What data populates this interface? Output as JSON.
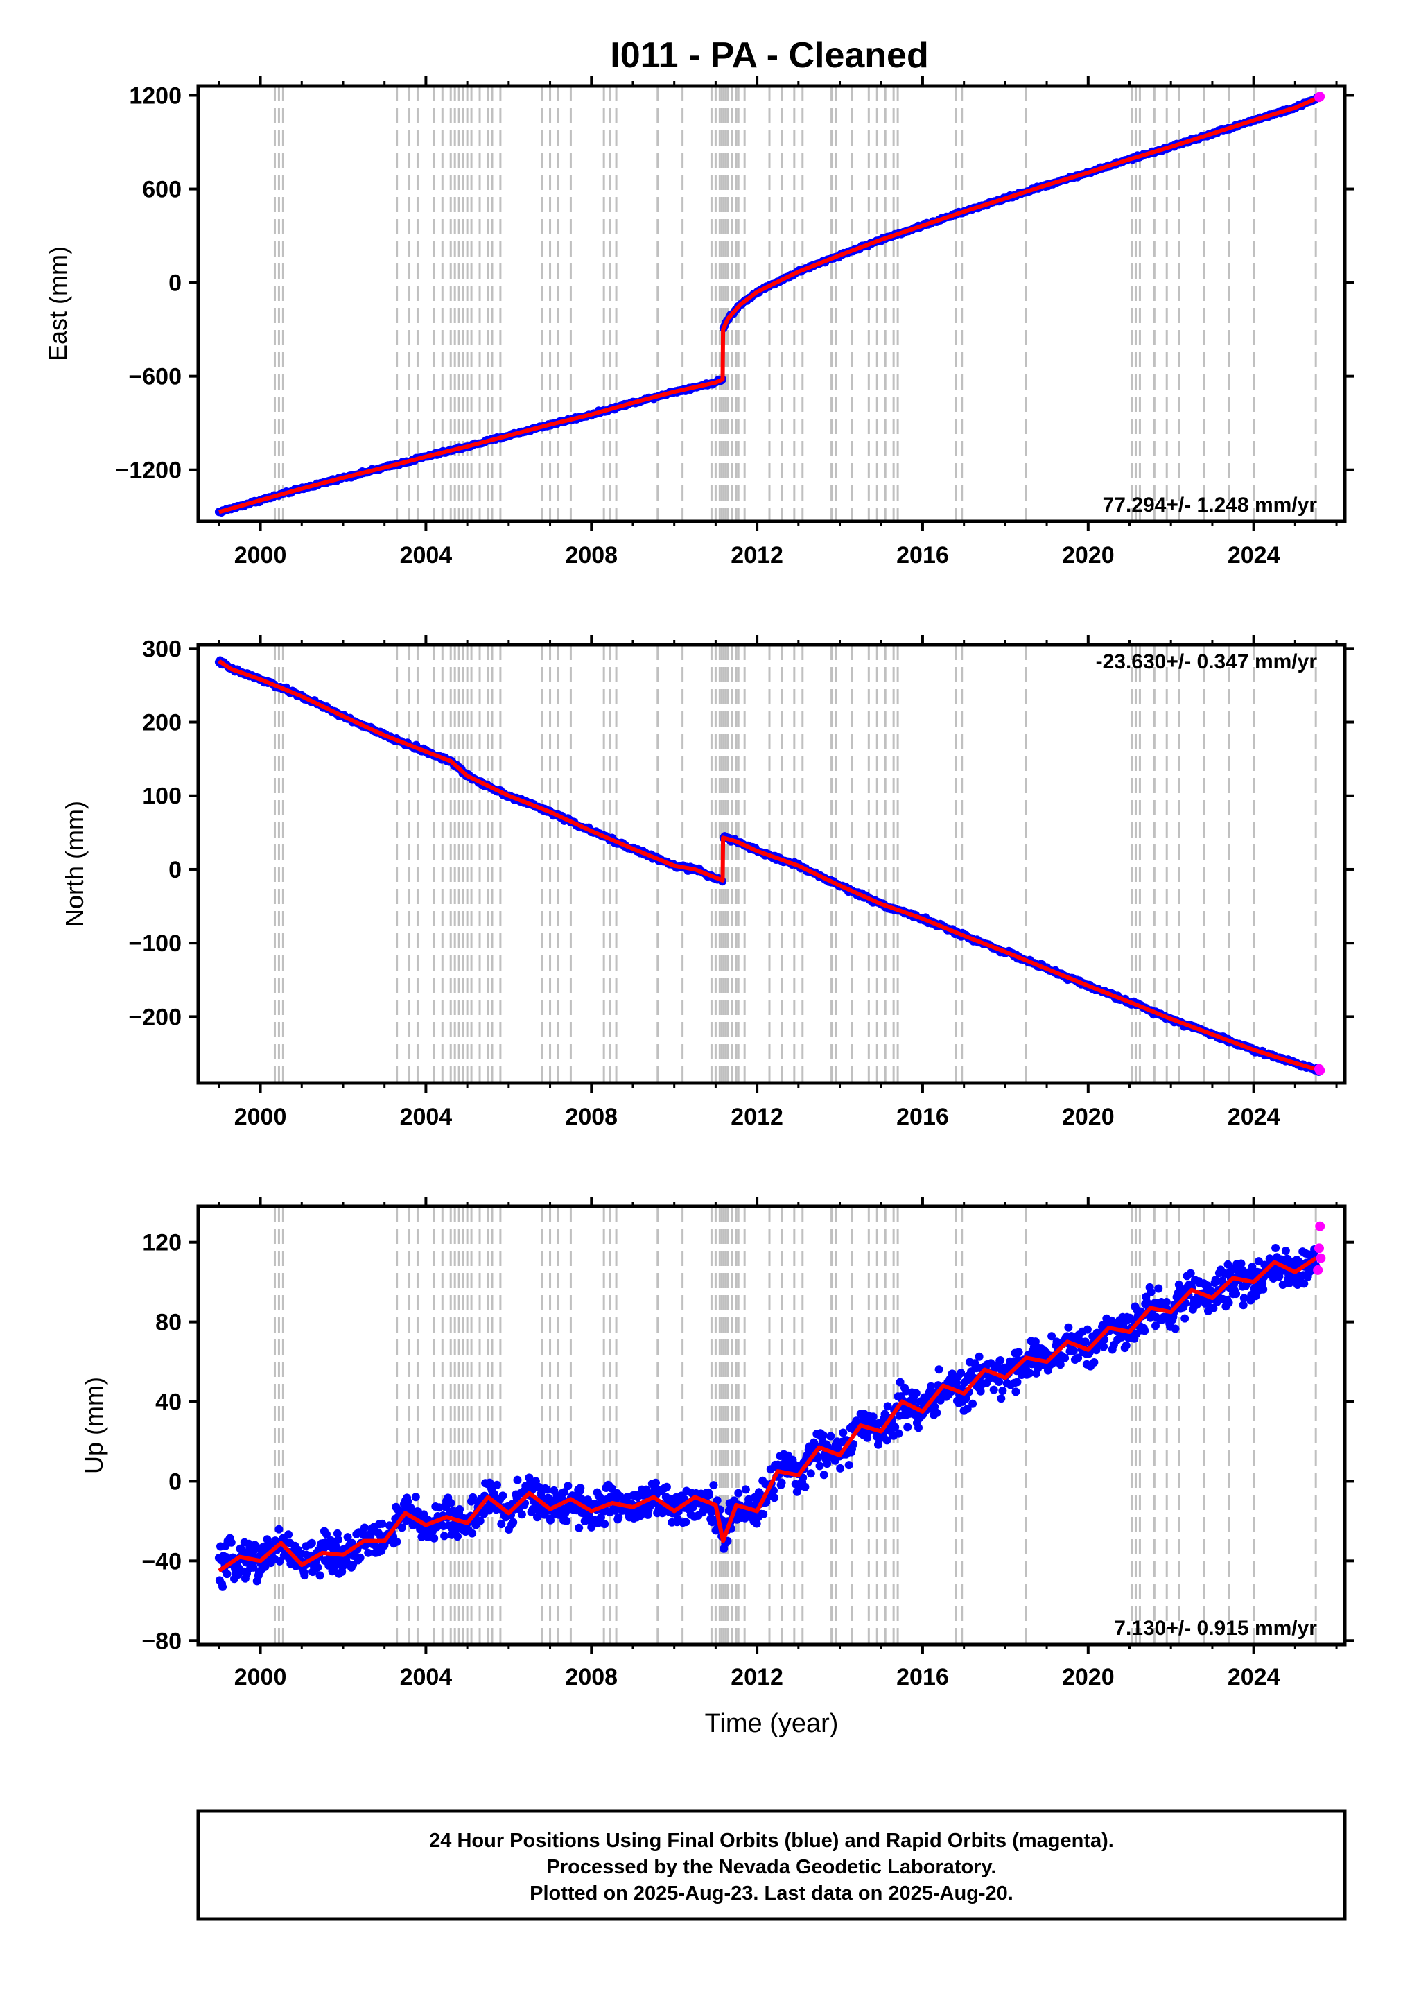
{
  "title": "I011  - PA - Cleaned",
  "footer": {
    "lines": [
      "24 Hour Positions Using Final Orbits (blue) and Rapid Orbits (magenta).",
      "Processed by the Nevada Geodetic Laboratory.",
      "Plotted on 2025-Aug-23. Last data on 2025-Aug-20."
    ]
  },
  "colors": {
    "final_orbits": "#0000ff",
    "rapid_orbits": "#ff00ff",
    "model": "#ff0000",
    "event_lines": "#c0c0c0"
  },
  "event_lines_years": [
    2000.35,
    2000.45,
    2000.55,
    2003.3,
    2003.6,
    2003.8,
    2004.2,
    2004.4,
    2004.6,
    2004.7,
    2004.8,
    2004.9,
    2005.0,
    2005.1,
    2005.3,
    2005.5,
    2005.6,
    2005.8,
    2006.8,
    2007.0,
    2007.2,
    2007.5,
    2008.3,
    2008.45,
    2008.6,
    2009.6,
    2010.2,
    2010.9,
    2011.0,
    2011.1,
    2011.15,
    2011.2,
    2011.25,
    2011.3,
    2011.4,
    2011.5,
    2011.55,
    2011.7,
    2012.3,
    2012.6,
    2012.9,
    2013.1,
    2013.8,
    2013.9,
    2014.3,
    2014.7,
    2014.9,
    2015.1,
    2015.3,
    2015.4,
    2016.8,
    2016.95,
    2018.5,
    2021.05,
    2021.15,
    2021.25,
    2021.6,
    2021.9,
    2022.2,
    2022.8,
    2023.4,
    2024.0,
    2025.5
  ],
  "chart_data": [
    {
      "type": "scatter",
      "ylabel": "East (mm)",
      "xlabel": "",
      "xlim": [
        1998.5,
        2026.2
      ],
      "ylim": [
        -1530,
        1260
      ],
      "xticks": [
        2000,
        2004,
        2008,
        2012,
        2016,
        2020,
        2024
      ],
      "yticks": [
        -1200,
        -600,
        0,
        600,
        1200
      ],
      "rate_label": "77.294+/- 1.248 mm/yr",
      "rate_position": "bottom-right",
      "series": [
        {
          "role": "final-orbits",
          "x": [
            1999.0,
            2000.0,
            2001.0,
            2002.0,
            2003.0,
            2004.0,
            2005.0,
            2006.0,
            2007.0,
            2008.0,
            2009.0,
            2010.0,
            2011.0,
            2011.17,
            2011.18,
            2011.3,
            2011.6,
            2012.0,
            2013.0,
            2014.0,
            2015.0,
            2016.0,
            2017.0,
            2018.0,
            2019.0,
            2020.0,
            2021.0,
            2022.0,
            2023.0,
            2024.0,
            2025.0,
            2025.6
          ],
          "y": [
            -1470,
            -1395,
            -1320,
            -1250,
            -1185,
            -1115,
            -1050,
            -980,
            -910,
            -845,
            -770,
            -700,
            -640,
            -620,
            -300,
            -230,
            -140,
            -60,
            70,
            175,
            275,
            365,
            455,
            540,
            625,
            705,
            790,
            870,
            955,
            1040,
            1120,
            1190
          ]
        },
        {
          "role": "rapid-orbits",
          "x": [
            2025.58,
            2025.6
          ],
          "y": [
            1188,
            1192
          ]
        },
        {
          "role": "model",
          "x": [
            1999.0,
            2000.0,
            2001.0,
            2002.0,
            2003.0,
            2004.0,
            2005.0,
            2006.0,
            2007.0,
            2008.0,
            2009.0,
            2010.0,
            2011.0,
            2011.17,
            2011.18,
            2011.3,
            2011.6,
            2012.0,
            2013.0,
            2014.0,
            2015.0,
            2016.0,
            2017.0,
            2018.0,
            2019.0,
            2020.0,
            2021.0,
            2022.0,
            2023.0,
            2024.0,
            2025.0,
            2025.6
          ],
          "y": [
            -1470,
            -1395,
            -1320,
            -1250,
            -1185,
            -1115,
            -1050,
            -980,
            -910,
            -845,
            -770,
            -700,
            -640,
            -620,
            -300,
            -230,
            -140,
            -60,
            70,
            175,
            275,
            365,
            455,
            540,
            625,
            705,
            790,
            870,
            955,
            1040,
            1120,
            1190
          ]
        }
      ]
    },
    {
      "type": "scatter",
      "ylabel": "North (mm)",
      "xlabel": "",
      "xlim": [
        1998.5,
        2026.2
      ],
      "ylim": [
        -290,
        305
      ],
      "xticks": [
        2000,
        2004,
        2008,
        2012,
        2016,
        2020,
        2024
      ],
      "yticks": [
        -200,
        -100,
        0,
        100,
        200,
        300
      ],
      "rate_label": "-23.630+/- 0.347 mm/yr",
      "rate_position": "top-right",
      "series": [
        {
          "role": "final-orbits",
          "x": [
            1999.0,
            1999.3,
            2000.0,
            2001.0,
            2002.0,
            2003.0,
            2004.0,
            2004.6,
            2005.0,
            2006.0,
            2007.0,
            2008.0,
            2009.0,
            2010.0,
            2010.5,
            2011.17,
            2011.18,
            2011.5,
            2012.0,
            2013.0,
            2014.0,
            2015.0,
            2016.0,
            2017.0,
            2018.0,
            2019.0,
            2020.0,
            2021.0,
            2022.0,
            2023.0,
            2024.0,
            2025.0,
            2025.6
          ],
          "y": [
            283,
            272,
            258,
            235,
            208,
            182,
            160,
            147,
            127,
            100,
            78,
            52,
            28,
            5,
            0,
            -15,
            43,
            38,
            25,
            5,
            -22,
            -47,
            -67,
            -90,
            -112,
            -135,
            -158,
            -180,
            -203,
            -224,
            -245,
            -263,
            -273
          ]
        },
        {
          "role": "rapid-orbits",
          "x": [
            2025.58,
            2025.6
          ],
          "y": [
            -271,
            -273
          ]
        },
        {
          "role": "model",
          "x": [
            1999.0,
            1999.3,
            2000.0,
            2001.0,
            2002.0,
            2003.0,
            2004.0,
            2004.6,
            2005.0,
            2006.0,
            2007.0,
            2008.0,
            2009.0,
            2010.0,
            2010.5,
            2011.17,
            2011.18,
            2011.5,
            2012.0,
            2013.0,
            2014.0,
            2015.0,
            2016.0,
            2017.0,
            2018.0,
            2019.0,
            2020.0,
            2021.0,
            2022.0,
            2023.0,
            2024.0,
            2025.0,
            2025.6
          ],
          "y": [
            283,
            272,
            258,
            235,
            208,
            182,
            160,
            147,
            127,
            100,
            78,
            52,
            28,
            5,
            0,
            -15,
            43,
            38,
            25,
            5,
            -22,
            -47,
            -67,
            -90,
            -112,
            -135,
            -158,
            -180,
            -203,
            -224,
            -245,
            -263,
            -273
          ]
        }
      ]
    },
    {
      "type": "scatter",
      "ylabel": "Up (mm)",
      "xlabel": "Time (year)",
      "xlim": [
        1998.5,
        2026.2
      ],
      "ylim": [
        -82,
        138
      ],
      "xticks": [
        2000,
        2004,
        2008,
        2012,
        2016,
        2020,
        2024
      ],
      "yticks": [
        -80,
        -40,
        0,
        40,
        80,
        120
      ],
      "rate_label": "7.130+/- 0.915 mm/yr",
      "rate_position": "bottom-right",
      "series": [
        {
          "role": "final-orbits",
          "x": [
            1999.0,
            1999.5,
            2000.0,
            2000.5,
            2001.0,
            2001.5,
            2002.0,
            2002.5,
            2003.0,
            2003.5,
            2004.0,
            2004.5,
            2005.0,
            2005.5,
            2006.0,
            2006.5,
            2007.0,
            2007.5,
            2008.0,
            2008.5,
            2009.0,
            2009.5,
            2010.0,
            2010.5,
            2011.0,
            2011.18,
            2011.5,
            2012.0,
            2012.5,
            2013.0,
            2013.5,
            2014.0,
            2014.5,
            2015.0,
            2015.5,
            2016.0,
            2016.5,
            2017.0,
            2017.5,
            2018.0,
            2018.5,
            2019.0,
            2019.5,
            2020.0,
            2020.5,
            2021.0,
            2021.5,
            2022.0,
            2022.5,
            2023.0,
            2023.5,
            2024.0,
            2024.5,
            2025.0,
            2025.5
          ],
          "y": [
            -45,
            -38,
            -40,
            -31,
            -42,
            -36,
            -37,
            -30,
            -30,
            -16,
            -22,
            -18,
            -21,
            -8,
            -16,
            -6,
            -14,
            -9,
            -15,
            -11,
            -13,
            -8,
            -15,
            -8,
            -12,
            -30,
            -12,
            -15,
            5,
            3,
            17,
            13,
            28,
            25,
            40,
            35,
            48,
            44,
            56,
            52,
            62,
            60,
            70,
            66,
            77,
            75,
            87,
            85,
            96,
            92,
            102,
            100,
            110,
            105,
            112
          ]
        },
        {
          "role": "rapid-orbits",
          "x": [
            2025.55,
            2025.58,
            2025.6,
            2025.62
          ],
          "y": [
            106,
            117,
            128,
            112
          ]
        },
        {
          "role": "model",
          "x": [
            1999.0,
            1999.5,
            2000.0,
            2000.5,
            2001.0,
            2001.5,
            2002.0,
            2002.5,
            2003.0,
            2003.5,
            2004.0,
            2004.5,
            2005.0,
            2005.5,
            2006.0,
            2006.5,
            2007.0,
            2007.5,
            2008.0,
            2008.5,
            2009.0,
            2009.5,
            2010.0,
            2010.5,
            2011.0,
            2011.18,
            2011.5,
            2012.0,
            2012.5,
            2013.0,
            2013.5,
            2014.0,
            2014.5,
            2015.0,
            2015.5,
            2016.0,
            2016.5,
            2017.0,
            2017.5,
            2018.0,
            2018.5,
            2019.0,
            2019.5,
            2020.0,
            2020.5,
            2021.0,
            2021.5,
            2022.0,
            2022.5,
            2023.0,
            2023.5,
            2024.0,
            2024.5,
            2025.0,
            2025.5
          ],
          "y": [
            -45,
            -38,
            -40,
            -31,
            -42,
            -36,
            -37,
            -30,
            -30,
            -16,
            -22,
            -18,
            -21,
            -8,
            -16,
            -6,
            -14,
            -9,
            -15,
            -11,
            -13,
            -8,
            -15,
            -8,
            -12,
            -30,
            -12,
            -15,
            5,
            3,
            17,
            13,
            28,
            25,
            40,
            35,
            48,
            44,
            56,
            52,
            62,
            60,
            70,
            66,
            77,
            75,
            87,
            85,
            96,
            92,
            102,
            100,
            110,
            105,
            112
          ]
        }
      ]
    }
  ]
}
